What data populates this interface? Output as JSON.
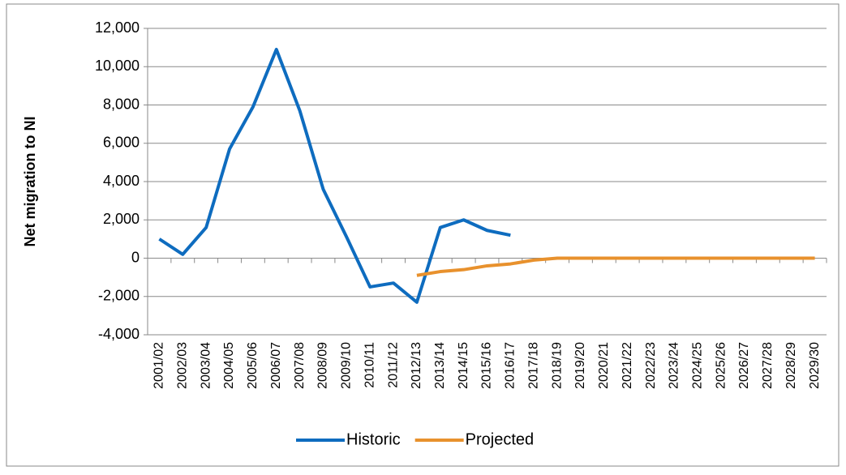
{
  "chart_data": {
    "type": "line",
    "y_label": "Net migration to NI",
    "categories": [
      "2001/02",
      "2002/03",
      "2003/04",
      "2004/05",
      "2005/06",
      "2006/07",
      "2007/08",
      "2008/09",
      "2009/10",
      "2010/11",
      "2011/12",
      "2012/13",
      "2013/14",
      "2014/15",
      "2015/16",
      "2016/17",
      "2017/18",
      "2018/19",
      "2019/20",
      "2020/21",
      "2021/22",
      "2022/23",
      "2023/24",
      "2024/25",
      "2025/26",
      "2026/27",
      "2027/28",
      "2028/29",
      "2029/30"
    ],
    "series": [
      {
        "name": "Historic",
        "color": "#0e6cbf",
        "values": [
          1000,
          200,
          1600,
          5700,
          7900,
          10900,
          7700,
          3600,
          1100,
          -1500,
          -1300,
          -2300,
          1600,
          2000,
          1450,
          1200,
          null,
          null,
          null,
          null,
          null,
          null,
          null,
          null,
          null,
          null,
          null,
          null,
          null
        ]
      },
      {
        "name": "Projected",
        "color": "#e8912d",
        "values": [
          null,
          null,
          null,
          null,
          null,
          null,
          null,
          null,
          null,
          null,
          null,
          -900,
          -700,
          -600,
          -400,
          -300,
          -100,
          0,
          0,
          0,
          0,
          0,
          0,
          0,
          0,
          0,
          0,
          0,
          0
        ]
      }
    ],
    "ylim": [
      -4000,
      12000
    ],
    "yticks": [
      {
        "value": -4000,
        "label": "-4,000"
      },
      {
        "value": -2000,
        "label": "-2,000"
      },
      0,
      {
        "value": 2000,
        "label": "2,000"
      },
      {
        "value": 4000,
        "label": "4,000"
      },
      {
        "value": 6000,
        "label": "6,000"
      },
      {
        "value": 8000,
        "label": "8,000"
      },
      {
        "value": 10000,
        "label": "10,000"
      },
      {
        "value": 12000,
        "label": "12,000"
      }
    ],
    "grid": true,
    "legend": "bottom"
  }
}
